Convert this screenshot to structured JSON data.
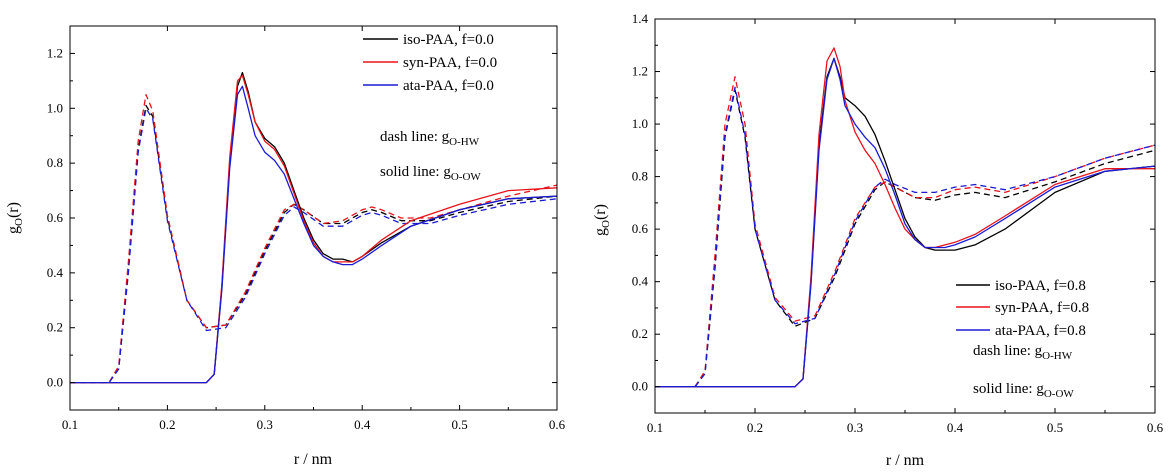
{
  "colors": {
    "iso": "#000000",
    "syn": "#e8141b",
    "ata": "#1b1bd6"
  },
  "chart_data": [
    {
      "type": "line",
      "xlabel": "r / nm",
      "ylabel_main": "g",
      "ylabel_sub": "O",
      "ylabel_tail": "(r)",
      "xlim": [
        0.1,
        0.6
      ],
      "ylim": [
        -0.1,
        1.3
      ],
      "xticks": [
        "0.1",
        "0.2",
        "0.3",
        "0.4",
        "0.5",
        "0.6"
      ],
      "yticks": [
        "0.0",
        "0.2",
        "0.4",
        "0.6",
        "0.8",
        "1.0",
        "1.2"
      ],
      "legend_position": "top-right",
      "legend": [
        "iso-PAA, f=0.0",
        "syn-PAA, f=0.0",
        "ata-PAA, f=0.0"
      ],
      "note_dash": "dash line: g",
      "note_dash_sub": "O-HW",
      "note_solid": "solid line: g",
      "note_solid_sub": "O-OW",
      "series": [
        {
          "name": "iso-PAA, f=0.0",
          "color_key": "iso",
          "style": "solid",
          "x": [
            0.1,
            0.24,
            0.248,
            0.256,
            0.264,
            0.272,
            0.277,
            0.283,
            0.29,
            0.3,
            0.31,
            0.32,
            0.33,
            0.34,
            0.35,
            0.36,
            0.37,
            0.38,
            0.39,
            0.4,
            0.42,
            0.45,
            0.5,
            0.55,
            0.6
          ],
          "y": [
            0.0,
            0.0,
            0.03,
            0.35,
            0.8,
            1.08,
            1.13,
            1.06,
            0.95,
            0.89,
            0.86,
            0.8,
            0.7,
            0.6,
            0.52,
            0.47,
            0.45,
            0.45,
            0.44,
            0.46,
            0.51,
            0.57,
            0.63,
            0.67,
            0.68
          ]
        },
        {
          "name": "syn-PAA, f=0.0",
          "color_key": "syn",
          "style": "solid",
          "x": [
            0.1,
            0.24,
            0.248,
            0.256,
            0.264,
            0.272,
            0.277,
            0.283,
            0.29,
            0.3,
            0.31,
            0.32,
            0.33,
            0.34,
            0.35,
            0.36,
            0.37,
            0.38,
            0.39,
            0.4,
            0.42,
            0.45,
            0.5,
            0.55,
            0.6
          ],
          "y": [
            0.0,
            0.0,
            0.03,
            0.36,
            0.82,
            1.1,
            1.12,
            1.05,
            0.95,
            0.88,
            0.85,
            0.79,
            0.69,
            0.59,
            0.51,
            0.46,
            0.44,
            0.44,
            0.44,
            0.46,
            0.52,
            0.59,
            0.65,
            0.7,
            0.71
          ]
        },
        {
          "name": "ata-PAA, f=0.0",
          "color_key": "ata",
          "style": "solid",
          "x": [
            0.1,
            0.24,
            0.248,
            0.256,
            0.264,
            0.272,
            0.277,
            0.283,
            0.29,
            0.3,
            0.31,
            0.32,
            0.33,
            0.34,
            0.35,
            0.36,
            0.37,
            0.38,
            0.39,
            0.4,
            0.42,
            0.45,
            0.5,
            0.55,
            0.6
          ],
          "y": [
            0.0,
            0.0,
            0.03,
            0.34,
            0.78,
            1.05,
            1.08,
            1.0,
            0.9,
            0.84,
            0.81,
            0.76,
            0.67,
            0.58,
            0.5,
            0.46,
            0.44,
            0.43,
            0.43,
            0.45,
            0.5,
            0.57,
            0.63,
            0.67,
            0.68
          ]
        },
        {
          "name": "iso-PAA, f=0.0",
          "color_key": "iso",
          "style": "dash",
          "x": [
            0.1,
            0.14,
            0.15,
            0.16,
            0.17,
            0.178,
            0.185,
            0.2,
            0.22,
            0.24,
            0.26,
            0.28,
            0.3,
            0.32,
            0.33,
            0.34,
            0.36,
            0.38,
            0.4,
            0.41,
            0.42,
            0.44,
            0.47,
            0.5,
            0.55,
            0.6
          ],
          "y": [
            0.0,
            0.0,
            0.05,
            0.42,
            0.85,
            1.01,
            0.97,
            0.6,
            0.3,
            0.2,
            0.21,
            0.32,
            0.48,
            0.62,
            0.65,
            0.63,
            0.58,
            0.58,
            0.62,
            0.63,
            0.62,
            0.59,
            0.59,
            0.62,
            0.66,
            0.68
          ]
        },
        {
          "name": "syn-PAA, f=0.0",
          "color_key": "syn",
          "style": "dash",
          "x": [
            0.1,
            0.14,
            0.15,
            0.16,
            0.17,
            0.178,
            0.185,
            0.2,
            0.22,
            0.24,
            0.26,
            0.28,
            0.3,
            0.32,
            0.33,
            0.34,
            0.36,
            0.38,
            0.4,
            0.41,
            0.42,
            0.44,
            0.47,
            0.5,
            0.55,
            0.6
          ],
          "y": [
            0.0,
            0.0,
            0.06,
            0.44,
            0.88,
            1.05,
            0.99,
            0.61,
            0.3,
            0.2,
            0.21,
            0.33,
            0.49,
            0.63,
            0.65,
            0.63,
            0.58,
            0.59,
            0.63,
            0.64,
            0.63,
            0.6,
            0.6,
            0.63,
            0.68,
            0.72
          ]
        },
        {
          "name": "ata-PAA, f=0.0",
          "color_key": "ata",
          "style": "dash",
          "x": [
            0.1,
            0.14,
            0.15,
            0.16,
            0.17,
            0.178,
            0.185,
            0.2,
            0.22,
            0.24,
            0.26,
            0.28,
            0.3,
            0.32,
            0.33,
            0.34,
            0.36,
            0.38,
            0.4,
            0.41,
            0.42,
            0.44,
            0.47,
            0.5,
            0.55,
            0.6
          ],
          "y": [
            0.0,
            0.0,
            0.05,
            0.4,
            0.84,
            1.0,
            0.96,
            0.59,
            0.3,
            0.19,
            0.2,
            0.31,
            0.47,
            0.61,
            0.64,
            0.62,
            0.57,
            0.57,
            0.61,
            0.62,
            0.61,
            0.58,
            0.58,
            0.61,
            0.65,
            0.67
          ]
        }
      ]
    },
    {
      "type": "line",
      "xlabel": "r / nm",
      "ylabel_main": "g",
      "ylabel_sub": "O",
      "ylabel_tail": "(r)",
      "xlim": [
        0.1,
        0.6
      ],
      "ylim": [
        -0.1,
        1.4
      ],
      "xticks": [
        "0.1",
        "0.2",
        "0.3",
        "0.4",
        "0.5",
        "0.6"
      ],
      "yticks": [
        "0.0",
        "0.2",
        "0.4",
        "0.6",
        "0.8",
        "1.0",
        "1.2",
        "1.4"
      ],
      "legend_position": "bottom-right",
      "legend": [
        "iso-PAA, f=0.8",
        "syn-PAA, f=0.8",
        "ata-PAA, f=0.8"
      ],
      "note_dash": "dash line: g",
      "note_dash_sub": "O-HW",
      "note_solid": "solid line: g",
      "note_solid_sub": "O-OW",
      "series": [
        {
          "name": "iso-PAA, f=0.8",
          "color_key": "iso",
          "style": "solid",
          "x": [
            0.1,
            0.24,
            0.248,
            0.256,
            0.264,
            0.272,
            0.279,
            0.285,
            0.29,
            0.3,
            0.31,
            0.32,
            0.33,
            0.34,
            0.35,
            0.36,
            0.37,
            0.38,
            0.39,
            0.4,
            0.42,
            0.45,
            0.5,
            0.55,
            0.6
          ],
          "y": [
            0.0,
            0.0,
            0.03,
            0.4,
            0.92,
            1.18,
            1.25,
            1.18,
            1.1,
            1.07,
            1.03,
            0.96,
            0.86,
            0.75,
            0.64,
            0.57,
            0.53,
            0.52,
            0.52,
            0.52,
            0.54,
            0.6,
            0.74,
            0.82,
            0.84
          ]
        },
        {
          "name": "syn-PAA, f=0.8",
          "color_key": "syn",
          "style": "solid",
          "x": [
            0.1,
            0.24,
            0.248,
            0.256,
            0.264,
            0.272,
            0.279,
            0.285,
            0.29,
            0.3,
            0.31,
            0.32,
            0.33,
            0.34,
            0.35,
            0.36,
            0.37,
            0.38,
            0.39,
            0.4,
            0.42,
            0.45,
            0.5,
            0.55,
            0.6
          ],
          "y": [
            0.0,
            0.0,
            0.03,
            0.42,
            0.96,
            1.24,
            1.29,
            1.22,
            1.09,
            0.97,
            0.9,
            0.85,
            0.77,
            0.68,
            0.6,
            0.56,
            0.53,
            0.53,
            0.54,
            0.55,
            0.58,
            0.65,
            0.77,
            0.83,
            0.83
          ]
        },
        {
          "name": "ata-PAA, f=0.8",
          "color_key": "ata",
          "style": "solid",
          "x": [
            0.1,
            0.24,
            0.248,
            0.256,
            0.264,
            0.272,
            0.279,
            0.285,
            0.29,
            0.3,
            0.31,
            0.32,
            0.33,
            0.34,
            0.35,
            0.36,
            0.37,
            0.38,
            0.39,
            0.4,
            0.42,
            0.45,
            0.5,
            0.55,
            0.6
          ],
          "y": [
            0.0,
            0.0,
            0.03,
            0.39,
            0.9,
            1.17,
            1.25,
            1.17,
            1.07,
            1.0,
            0.95,
            0.91,
            0.83,
            0.73,
            0.62,
            0.56,
            0.53,
            0.53,
            0.53,
            0.54,
            0.57,
            0.64,
            0.76,
            0.82,
            0.84
          ]
        },
        {
          "name": "iso-PAA, f=0.8",
          "color_key": "iso",
          "style": "dash",
          "x": [
            0.1,
            0.14,
            0.15,
            0.16,
            0.17,
            0.18,
            0.19,
            0.2,
            0.22,
            0.24,
            0.26,
            0.28,
            0.3,
            0.32,
            0.33,
            0.34,
            0.36,
            0.38,
            0.4,
            0.42,
            0.45,
            0.5,
            0.55,
            0.6
          ],
          "y": [
            0.0,
            0.0,
            0.05,
            0.45,
            0.95,
            1.13,
            0.95,
            0.6,
            0.33,
            0.23,
            0.26,
            0.42,
            0.62,
            0.75,
            0.78,
            0.76,
            0.72,
            0.71,
            0.73,
            0.74,
            0.72,
            0.78,
            0.85,
            0.9
          ]
        },
        {
          "name": "syn-PAA, f=0.8",
          "color_key": "syn",
          "style": "dash",
          "x": [
            0.1,
            0.14,
            0.15,
            0.16,
            0.17,
            0.18,
            0.19,
            0.2,
            0.22,
            0.24,
            0.26,
            0.28,
            0.3,
            0.32,
            0.33,
            0.34,
            0.36,
            0.38,
            0.4,
            0.42,
            0.45,
            0.5,
            0.55,
            0.6
          ],
          "y": [
            0.0,
            0.0,
            0.06,
            0.5,
            1.0,
            1.18,
            1.0,
            0.62,
            0.34,
            0.25,
            0.27,
            0.44,
            0.64,
            0.76,
            0.78,
            0.76,
            0.72,
            0.72,
            0.75,
            0.76,
            0.74,
            0.8,
            0.87,
            0.92
          ]
        },
        {
          "name": "ata-PAA, f=0.8",
          "color_key": "ata",
          "style": "dash",
          "x": [
            0.1,
            0.14,
            0.15,
            0.16,
            0.17,
            0.18,
            0.19,
            0.2,
            0.22,
            0.24,
            0.26,
            0.28,
            0.3,
            0.32,
            0.33,
            0.34,
            0.36,
            0.38,
            0.4,
            0.42,
            0.45,
            0.5,
            0.55,
            0.6
          ],
          "y": [
            0.0,
            0.0,
            0.05,
            0.46,
            0.96,
            1.14,
            0.96,
            0.6,
            0.33,
            0.24,
            0.26,
            0.43,
            0.63,
            0.76,
            0.79,
            0.77,
            0.74,
            0.74,
            0.76,
            0.77,
            0.75,
            0.8,
            0.87,
            0.92
          ]
        }
      ]
    }
  ]
}
